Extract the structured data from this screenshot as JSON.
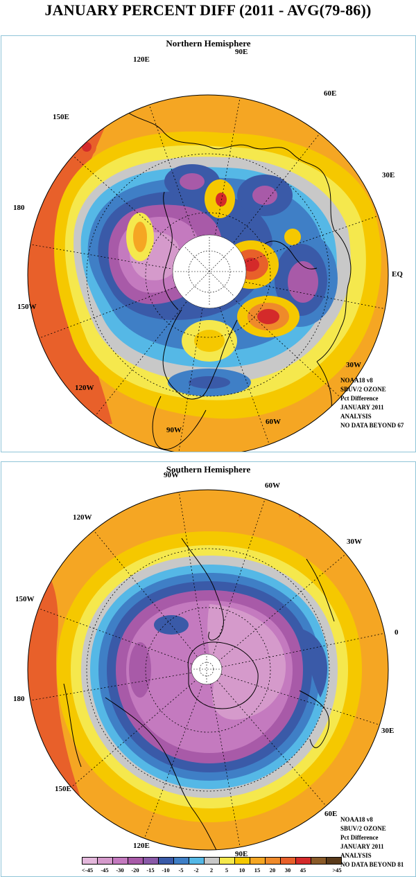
{
  "page_title": "JANUARY PERCENT DIFF (2011 - AVG(79-86))",
  "panels": {
    "north": {
      "title": "Northern Hemisphere",
      "longitude_labels": [
        "90E",
        "60E",
        "30E",
        "EQ",
        "30W",
        "60W",
        "90W",
        "120W",
        "150W",
        "180",
        "150E",
        "120E"
      ],
      "info": [
        "NOAA18 v8",
        "SBUV/2 OZONE",
        "Pct Difference",
        "JANUARY 2011",
        "ANALYSIS",
        "NO DATA BEYOND  67"
      ]
    },
    "south": {
      "title": "Southern Hemisphere",
      "longitude_labels": [
        "90W",
        "60W",
        "30W",
        "0",
        "30E",
        "60E",
        "90E",
        "120E",
        "150E",
        "180",
        "150W",
        "120W"
      ],
      "info": [
        "NOAA18 v8",
        "SBUV/2 OZONE",
        "Pct Difference",
        "JANUARY 2011",
        "ANALYSIS",
        "NO DATA BEYOND  81"
      ]
    }
  },
  "legend": {
    "labels": [
      "<-45",
      "-45",
      "-30",
      "-20",
      "-15",
      "-10",
      "-5",
      "-2",
      "2",
      "5",
      "10",
      "15",
      "20",
      "30",
      "45",
      ">45"
    ],
    "colors": [
      "#e4b8dc",
      "#d59acb",
      "#c47abf",
      "#a85aa8",
      "#8a5aa8",
      "#3a5aa8",
      "#3f7fc6",
      "#55b8e6",
      "#c8c8c8",
      "#f5e84d",
      "#f5c800",
      "#f5a623",
      "#ef8a2a",
      "#e8602a",
      "#d42a2a",
      "#8a5a28",
      "#5a3a1a"
    ]
  }
}
